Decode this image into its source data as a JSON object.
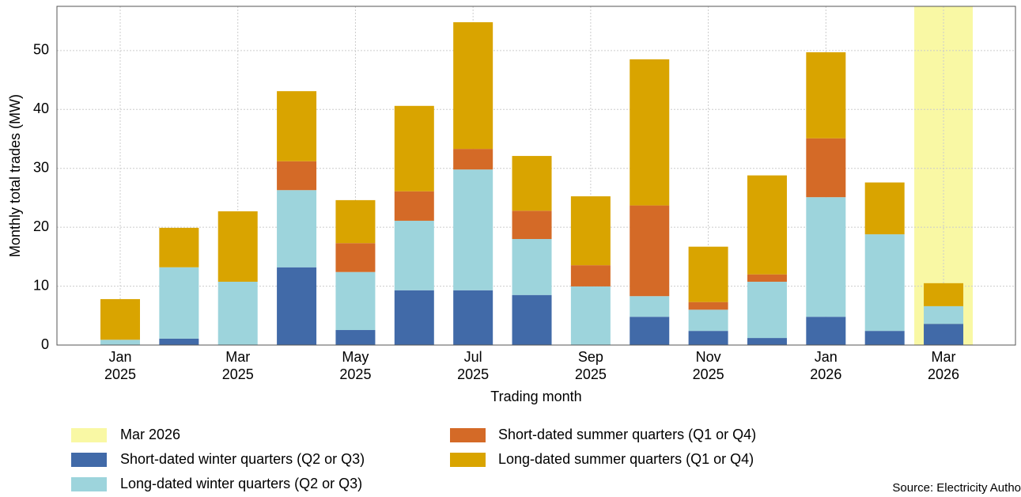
{
  "chart_data": {
    "type": "stacked_bar",
    "y_label": "Monthly total trades (MW)",
    "x_label": "Trading month",
    "categories": [
      "Jan\n2025",
      null,
      "Mar\n2025",
      null,
      "May\n2025",
      null,
      "Jul\n2025",
      null,
      "Sep\n2025",
      null,
      "Nov\n2025",
      null,
      "Jan\n2026",
      null,
      "Mar\n2026"
    ],
    "series": [
      {
        "name": "Short-dated winter quarters (Q2 or Q3)",
        "color": "#416aa8",
        "values": [
          0,
          1.1,
          0,
          13.2,
          2.55,
          9.3,
          9.3,
          8.5,
          0,
          4.8,
          2.4,
          1.2,
          4.8,
          2.4,
          3.6
        ]
      },
      {
        "name": "Long-dated winter quarters (Q2 or Q3)",
        "color": "#9dd4dc",
        "values": [
          0.9,
          12.1,
          10.75,
          13.1,
          9.85,
          11.8,
          20.5,
          9.5,
          9.95,
          3.5,
          3.6,
          9.55,
          20.3,
          16.4,
          3.0
        ]
      },
      {
        "name": "Short-dated summer quarters (Q1 or Q4)",
        "color": "#d46a27",
        "values": [
          0,
          0,
          0,
          4.9,
          4.9,
          5.0,
          3.5,
          4.8,
          3.6,
          15.4,
          1.3,
          1.25,
          10.0,
          0,
          0
        ]
      },
      {
        "name": "Long-dated summer quarters (Q1 or Q4)",
        "color": "#d9a400",
        "values": [
          6.9,
          6.7,
          11.95,
          11.9,
          7.3,
          14.5,
          21.5,
          9.3,
          11.7,
          24.8,
          9.4,
          16.8,
          14.6,
          8.8,
          3.9
        ]
      }
    ],
    "highlight": {
      "name": "Mar 2026",
      "color": "#f9f8a4"
    },
    "ylim": [
      0,
      57.5
    ],
    "yticks": [
      0,
      10,
      20,
      30,
      40,
      50
    ],
    "grid": true,
    "source": "Source: Electricity Autho"
  }
}
